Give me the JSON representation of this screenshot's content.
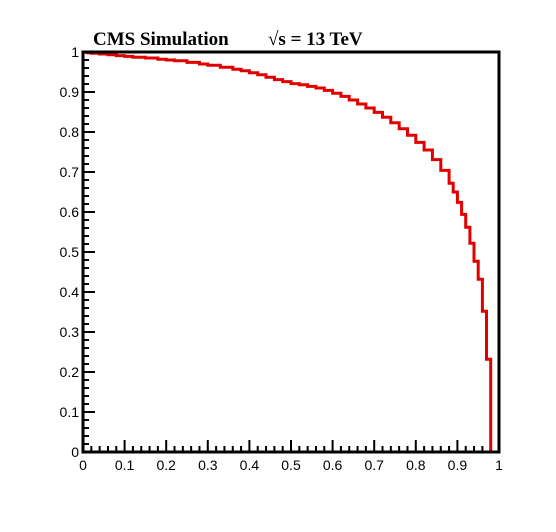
{
  "chart_data": {
    "type": "line",
    "title": "CMS Simulation",
    "subtitle": "√s = 13 TeV",
    "xlabel": "",
    "ylabel": "",
    "xlim": [
      0,
      1
    ],
    "ylim": [
      0,
      1
    ],
    "x_ticks": [
      "0",
      "0.1",
      "0.2",
      "0.3",
      "0.4",
      "0.5",
      "0.6",
      "0.7",
      "0.8",
      "0.9",
      "1"
    ],
    "y_ticks": [
      "0",
      "0.1",
      "0.2",
      "0.3",
      "0.4",
      "0.5",
      "0.6",
      "0.7",
      "0.8",
      "0.9",
      "1"
    ],
    "grid": false,
    "legend": "none",
    "line_color": "#e00000",
    "series": [
      {
        "x": [
          0.0,
          0.01,
          0.02,
          0.04,
          0.06,
          0.08,
          0.1,
          0.12,
          0.15,
          0.18,
          0.2,
          0.22,
          0.25,
          0.28,
          0.3,
          0.33,
          0.36,
          0.38,
          0.4,
          0.42,
          0.44,
          0.46,
          0.48,
          0.5,
          0.52,
          0.54,
          0.56,
          0.58,
          0.6,
          0.62,
          0.64,
          0.66,
          0.68,
          0.7,
          0.72,
          0.74,
          0.76,
          0.78,
          0.8,
          0.82,
          0.84,
          0.86,
          0.88,
          0.89,
          0.9,
          0.91,
          0.92,
          0.93,
          0.94,
          0.95,
          0.96,
          0.97,
          0.98,
          0.99
        ],
        "y": [
          1.0,
          0.998,
          0.997,
          0.995,
          0.993,
          0.991,
          0.989,
          0.987,
          0.985,
          0.982,
          0.98,
          0.978,
          0.974,
          0.97,
          0.967,
          0.962,
          0.957,
          0.953,
          0.948,
          0.943,
          0.937,
          0.931,
          0.926,
          0.921,
          0.918,
          0.914,
          0.91,
          0.904,
          0.897,
          0.889,
          0.88,
          0.87,
          0.86,
          0.849,
          0.837,
          0.823,
          0.808,
          0.792,
          0.774,
          0.755,
          0.731,
          0.704,
          0.672,
          0.65,
          0.624,
          0.594,
          0.562,
          0.522,
          0.477,
          0.432,
          0.352,
          0.232,
          0.0,
          0.0
        ]
      }
    ]
  }
}
